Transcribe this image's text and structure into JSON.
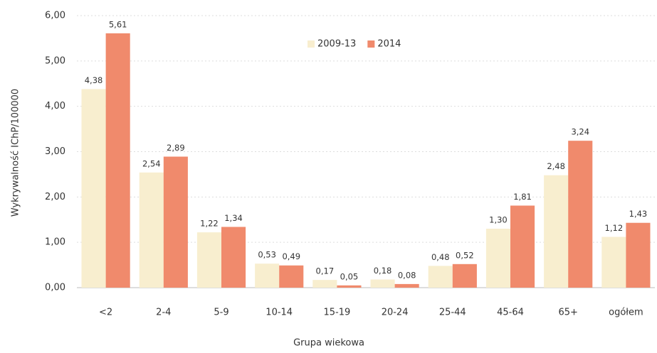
{
  "chart_data": {
    "type": "bar",
    "x_label": "Grupa wiekowa",
    "y_label": "Wykrywalność IChP/100000",
    "categories": [
      "<2",
      "2-4",
      "5-9",
      "10-14",
      "15-19",
      "20-24",
      "25-44",
      "45-64",
      "65+",
      "ogółem"
    ],
    "series": [
      {
        "name": "2009-13",
        "color": "#f8eecf",
        "values": [
          4.38,
          2.54,
          1.22,
          0.53,
          0.17,
          0.18,
          0.48,
          1.3,
          2.48,
          1.12
        ],
        "value_labels": [
          "4,38",
          "2,54",
          "1,22",
          "0,53",
          "0,17",
          "0,18",
          "0,48",
          "1,30",
          "2,48",
          "1,12"
        ]
      },
      {
        "name": "2014",
        "color": "#f08a6c",
        "values": [
          5.61,
          2.89,
          1.34,
          0.49,
          0.05,
          0.08,
          0.52,
          1.81,
          3.24,
          1.43
        ],
        "value_labels": [
          "5,61",
          "2,89",
          "1,34",
          "0,49",
          "0,05",
          "0,08",
          "0,52",
          "1,81",
          "3,24",
          "1,43"
        ]
      }
    ],
    "ylim": [
      0,
      6
    ],
    "yticks": [
      {
        "value": 0,
        "label": "0,00"
      },
      {
        "value": 1,
        "label": "1,00"
      },
      {
        "value": 2,
        "label": "2,00"
      },
      {
        "value": 3,
        "label": "3,00"
      },
      {
        "value": 4,
        "label": "4,00"
      },
      {
        "value": 5,
        "label": "5,00"
      },
      {
        "value": 6,
        "label": "6,00"
      }
    ],
    "grid": true,
    "legend": "top"
  }
}
